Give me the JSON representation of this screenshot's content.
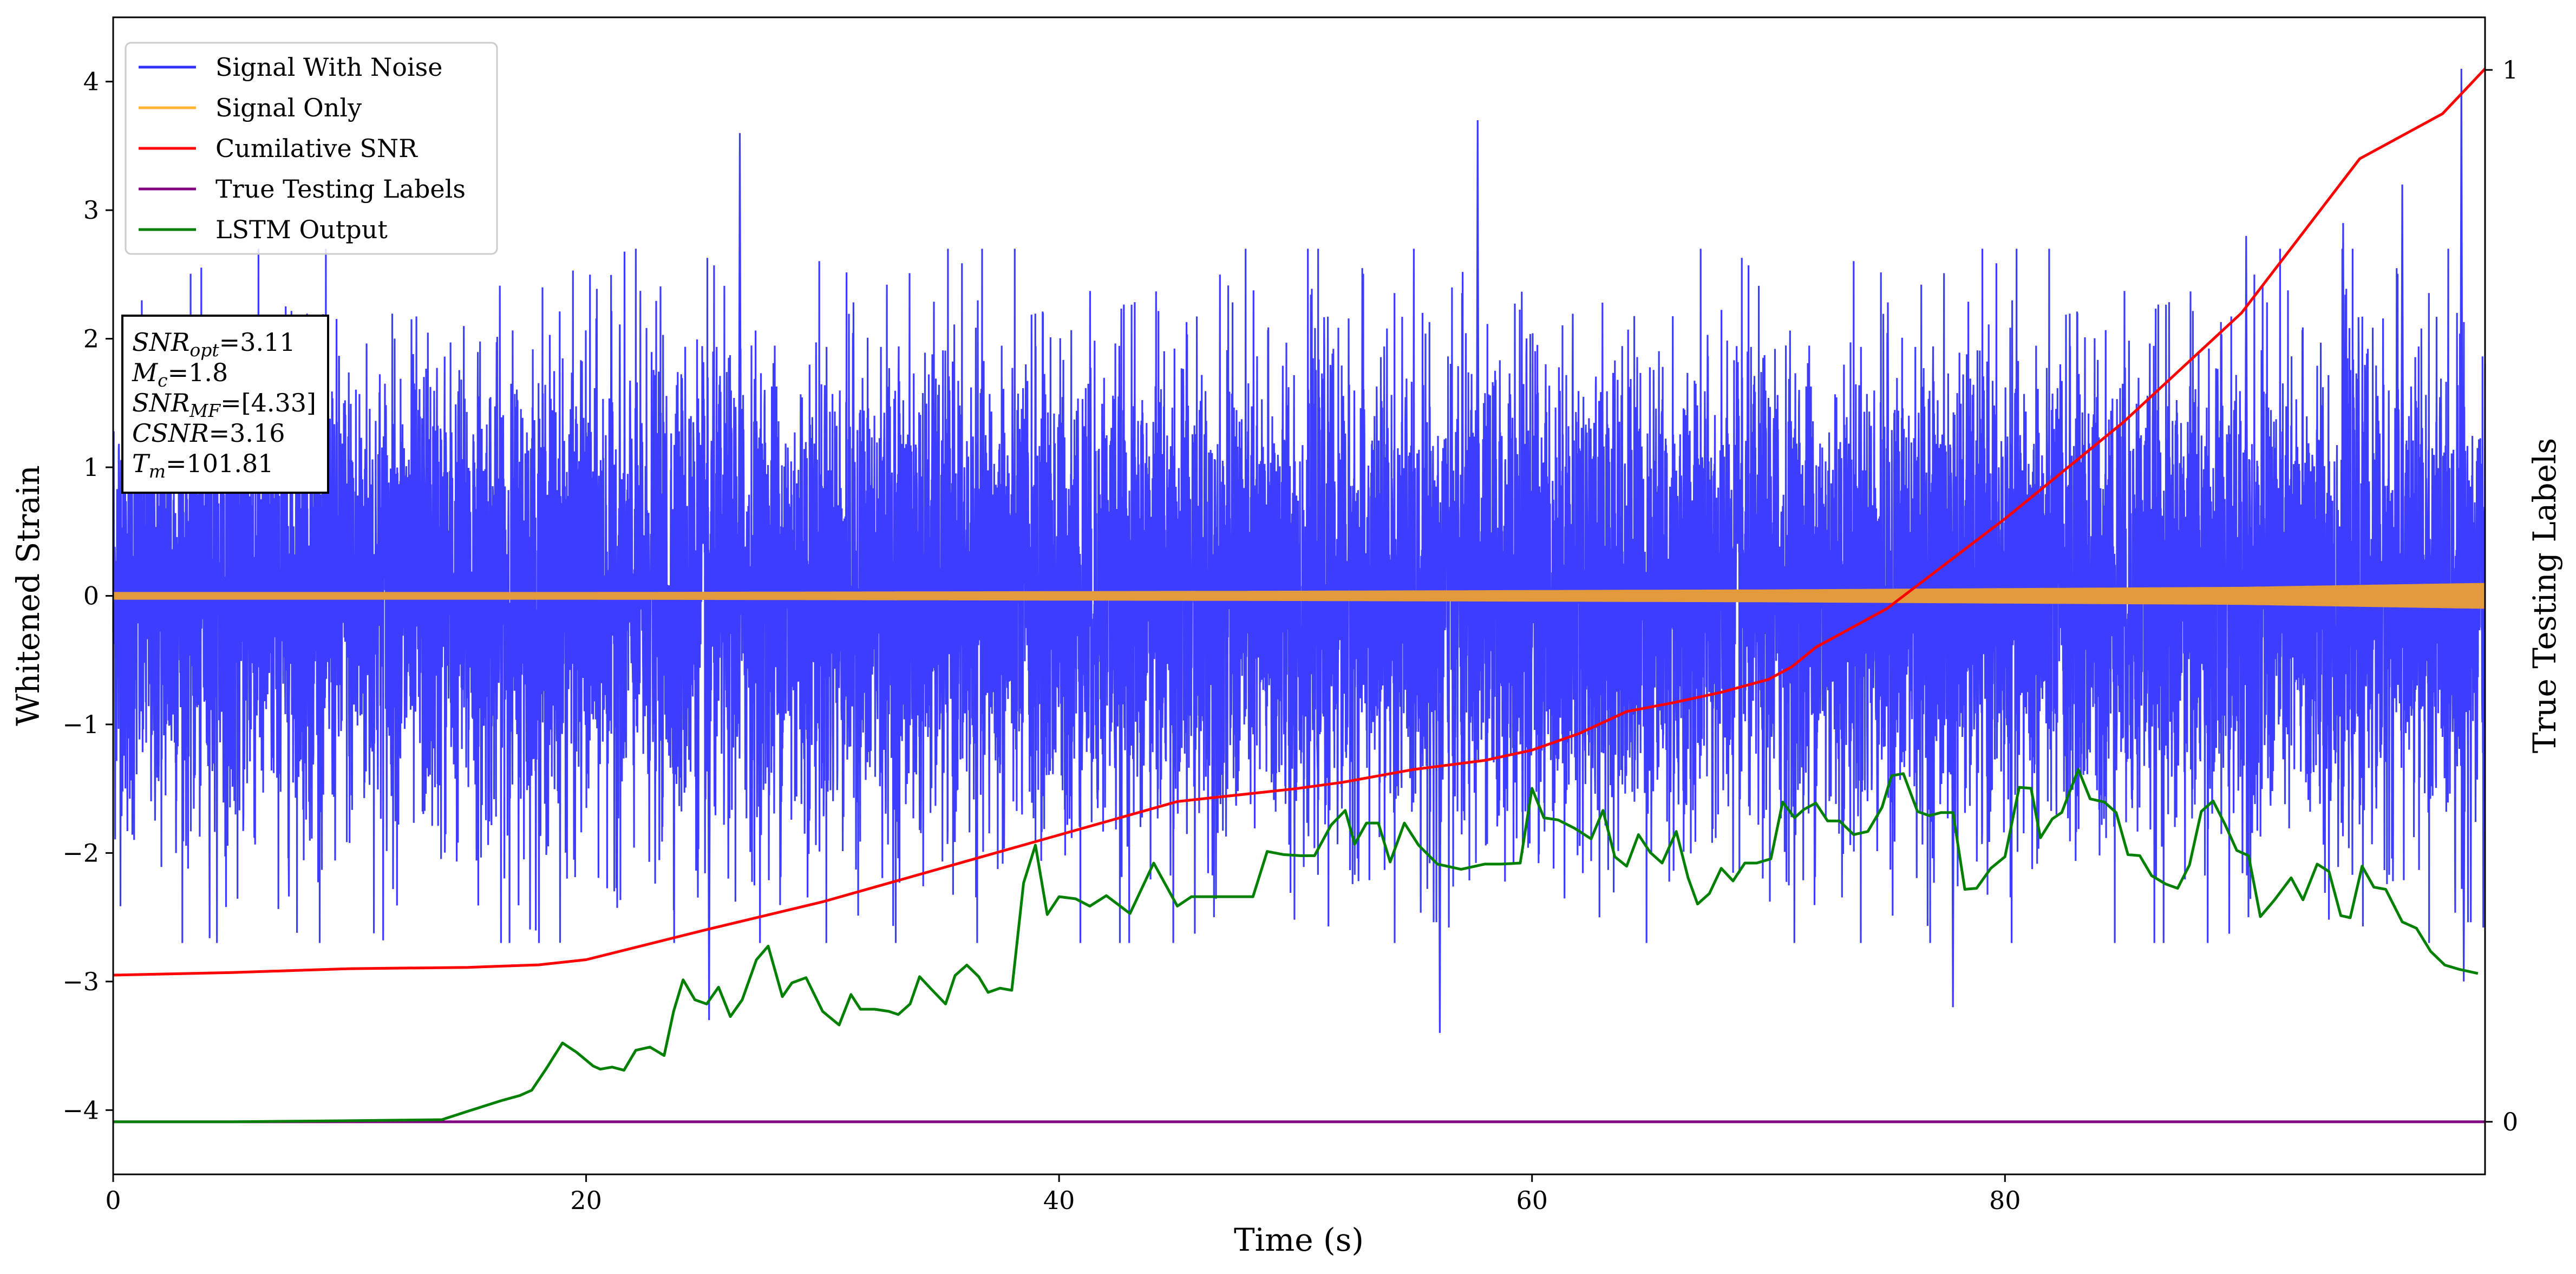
{
  "chart_data": {
    "type": "line",
    "xlabel": "Time (s)",
    "ylabel": "Whitened Strain",
    "ylabel_right": "True Testing Labels",
    "xlim": [
      0,
      100.3
    ],
    "ylim": [
      -4.5,
      4.5
    ],
    "ylim_right": [
      -0.05,
      1.05
    ],
    "x_ticks": [
      "0",
      "20",
      "40",
      "60",
      "80"
    ],
    "y_ticks": [
      "−4",
      "−3",
      "−2",
      "−1",
      "0",
      "1",
      "2",
      "3",
      "4"
    ],
    "y_ticks_right": [
      "0",
      "1"
    ],
    "grid": false,
    "legend_position": "top-left",
    "info_box": {
      "lines": [
        {
          "main": "SNR",
          "sub": "opt",
          "rest": "=3.11"
        },
        {
          "main": "M",
          "sub": "c",
          "rest": "=1.8"
        },
        {
          "main": "SNR",
          "sub": "MF",
          "rest": "=[4.33]"
        },
        {
          "main": "CSNR",
          "sub": "",
          "rest": "=3.16"
        },
        {
          "main": "T",
          "sub": "m",
          "rest": "=101.81"
        }
      ]
    },
    "series": [
      {
        "name": "Signal With Noise",
        "color": "#3333ff",
        "axis": "left",
        "description_values": {
          "typical_range": [
            -2.6,
            2.6
          ],
          "notable_peaks": [
            [
              26.5,
              3.6
            ],
            [
              57.7,
              3.7
            ],
            [
              96.8,
              3.2
            ],
            [
              99.3,
              4.1
            ],
            [
              56.1,
              -3.4
            ],
            [
              77.8,
              -3.2
            ],
            [
              25.2,
              -3.3
            ],
            [
              99.4,
              -3.0
            ],
            [
              94.3,
              2.9
            ],
            [
              90.2,
              2.8
            ]
          ]
        }
      },
      {
        "name": "Signal Only",
        "color": "#ffb533",
        "axis": "left",
        "envelope": [
          [
            0,
            0.03
          ],
          [
            20,
            0.03
          ],
          [
            50,
            0.04
          ],
          [
            70,
            0.05
          ],
          [
            90,
            0.07
          ],
          [
            100,
            0.1
          ]
        ]
      },
      {
        "name": "Cumilative SNR",
        "color": "#ff0000",
        "axis": "left",
        "x": [
          0,
          5,
          10,
          15,
          18,
          20,
          25,
          30,
          35,
          40,
          45,
          50,
          52,
          55,
          58,
          60,
          62,
          64,
          66,
          68,
          70,
          71,
          72,
          75,
          80,
          85,
          90,
          95,
          97,
          98.5,
          100.3
        ],
        "y": [
          -2.95,
          -2.93,
          -2.9,
          -2.89,
          -2.87,
          -2.83,
          -2.6,
          -2.38,
          -2.12,
          -1.86,
          -1.6,
          -1.5,
          -1.45,
          -1.35,
          -1.28,
          -1.2,
          -1.07,
          -0.9,
          -0.83,
          -0.75,
          -0.65,
          -0.55,
          -0.4,
          -0.1,
          0.6,
          1.35,
          2.2,
          3.4,
          3.6,
          3.75,
          4.1
        ]
      },
      {
        "name": "True Testing Labels",
        "color": "#800080",
        "axis": "right",
        "x": [
          0,
          100.3
        ],
        "y": [
          0,
          0
        ]
      },
      {
        "name": "LSTM Output",
        "color": "#008000",
        "axis": "right",
        "x": [
          0,
          5,
          10,
          13.9,
          15,
          16.4,
          17.2,
          17.7,
          18.3,
          19,
          19.6,
          20.3,
          20.6,
          21.1,
          21.6,
          22.1,
          22.7,
          23.3,
          23.7,
          24.1,
          24.6,
          25.1,
          25.6,
          26.1,
          26.6,
          27.2,
          27.7,
          28.3,
          28.7,
          29.3,
          30,
          30.7,
          31.2,
          31.6,
          32.2,
          32.8,
          33.2,
          33.7,
          34.1,
          34.6,
          35.2,
          35.6,
          36.1,
          36.6,
          37,
          37.5,
          38,
          38.5,
          39,
          39.5,
          40,
          40.7,
          41.3,
          42,
          43,
          44,
          45,
          45.6,
          46.3,
          47,
          47.6,
          48.2,
          48.8,
          49.5,
          50.2,
          50.8,
          51.5,
          52.1,
          52.5,
          53,
          53.5,
          54,
          54.6,
          55.2,
          56,
          57,
          58,
          58.7,
          59.5,
          60,
          60.5,
          61.1,
          61.8,
          62.5,
          63,
          63.5,
          64,
          64.5,
          65,
          65.5,
          66.1,
          66.6,
          67,
          67.5,
          68,
          68.5,
          69,
          69.5,
          70.1,
          70.6,
          71.1,
          71.5,
          72,
          72.5,
          73,
          73.6,
          74.2,
          74.8,
          75.2,
          75.7,
          76.3,
          76.8,
          77.3,
          77.8,
          78.3,
          78.8,
          79.4,
          80,
          80.6,
          81.1,
          81.5,
          82,
          82.4,
          83.1,
          83.6,
          84.2,
          84.7,
          85.2,
          85.7,
          86.2,
          86.8,
          87.3,
          87.8,
          88.3,
          88.8,
          89.3,
          89.8,
          90.3,
          90.8,
          91.4,
          92.1,
          92.6,
          93.2,
          93.7,
          94.2,
          94.6,
          95.1,
          95.6,
          96.1,
          96.8,
          97.4,
          98,
          98.6,
          99.2,
          100
        ],
        "y": [
          0,
          0,
          0.001,
          0.002,
          0.01,
          0.02,
          0.025,
          0.03,
          0.05,
          0.075,
          0.066,
          0.053,
          0.05,
          0.052,
          0.049,
          0.068,
          0.071,
          0.063,
          0.105,
          0.135,
          0.116,
          0.112,
          0.128,
          0.1,
          0.116,
          0.154,
          0.167,
          0.119,
          0.132,
          0.137,
          0.105,
          0.092,
          0.121,
          0.107,
          0.107,
          0.105,
          0.102,
          0.112,
          0.138,
          0.126,
          0.112,
          0.139,
          0.149,
          0.138,
          0.123,
          0.127,
          0.125,
          0.227,
          0.263,
          0.197,
          0.214,
          0.212,
          0.205,
          0.215,
          0.198,
          0.246,
          0.205,
          0.214,
          0.214,
          0.214,
          0.214,
          0.214,
          0.257,
          0.254,
          0.253,
          0.253,
          0.282,
          0.296,
          0.264,
          0.284,
          0.284,
          0.247,
          0.284,
          0.263,
          0.245,
          0.24,
          0.245,
          0.245,
          0.246,
          0.317,
          0.289,
          0.287,
          0.279,
          0.269,
          0.296,
          0.252,
          0.243,
          0.273,
          0.256,
          0.246,
          0.276,
          0.232,
          0.207,
          0.217,
          0.241,
          0.229,
          0.246,
          0.246,
          0.25,
          0.304,
          0.289,
          0.297,
          0.303,
          0.286,
          0.286,
          0.273,
          0.276,
          0.299,
          0.329,
          0.331,
          0.295,
          0.291,
          0.294,
          0.294,
          0.221,
          0.222,
          0.241,
          0.252,
          0.318,
          0.317,
          0.27,
          0.288,
          0.294,
          0.335,
          0.307,
          0.304,
          0.294,
          0.254,
          0.253,
          0.234,
          0.226,
          0.222,
          0.244,
          0.295,
          0.305,
          0.283,
          0.258,
          0.253,
          0.195,
          0.211,
          0.232,
          0.211,
          0.245,
          0.238,
          0.196,
          0.194,
          0.243,
          0.223,
          0.221,
          0.19,
          0.184,
          0.162,
          0.149,
          0.145,
          0.141
        ]
      }
    ]
  }
}
